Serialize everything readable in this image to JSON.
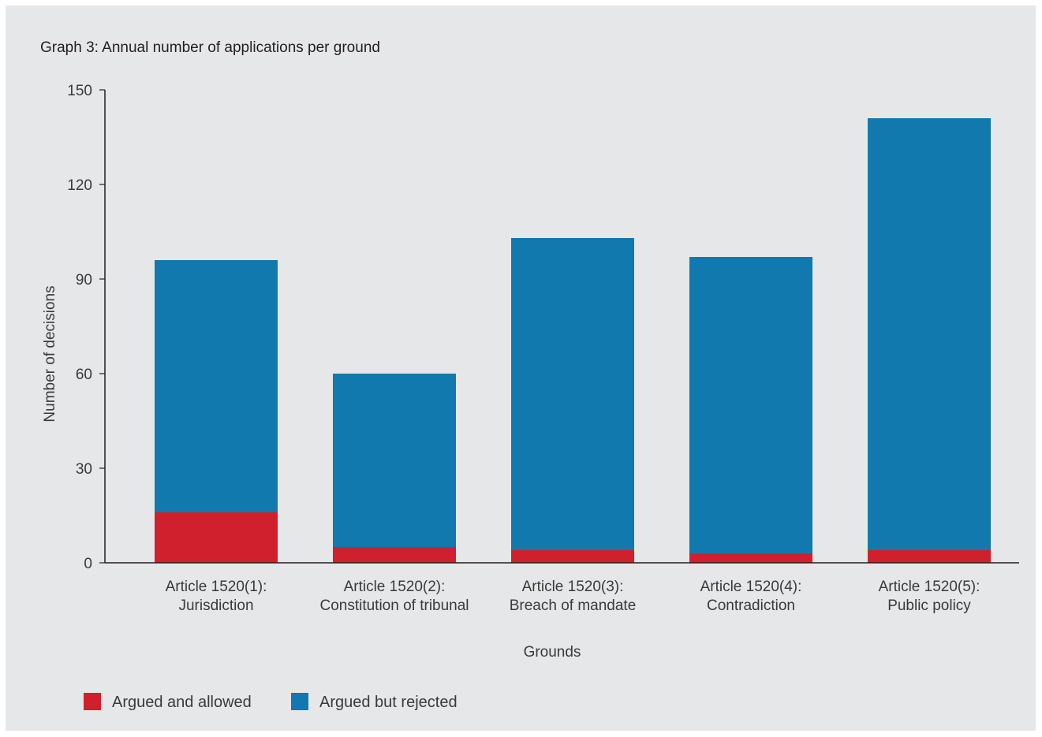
{
  "chart_data": {
    "type": "bar",
    "stacked": true,
    "title": "Graph 3: Annual number of applications per ground",
    "xlabel": "Grounds",
    "ylabel": "Number of decisions",
    "ylim": [
      0,
      150
    ],
    "yticks": [
      0,
      30,
      60,
      90,
      120,
      150
    ],
    "categories": [
      [
        "Article 1520(1):",
        "Jurisdiction"
      ],
      [
        "Article 1520(2):",
        "Constitution of tribunal"
      ],
      [
        "Article 1520(3):",
        "Breach of mandate"
      ],
      [
        "Article 1520(4):",
        "Contradiction"
      ],
      [
        "Article 1520(5):",
        "Public policy"
      ]
    ],
    "series": [
      {
        "name": "Argued and allowed",
        "color": "#d0202e",
        "values": [
          16,
          5,
          4,
          3,
          4
        ]
      },
      {
        "name": "Argued but rejected",
        "color": "#1279ae",
        "values": [
          80,
          55,
          99,
          94,
          137
        ]
      }
    ],
    "grid": false,
    "legend": "bottom-left"
  }
}
